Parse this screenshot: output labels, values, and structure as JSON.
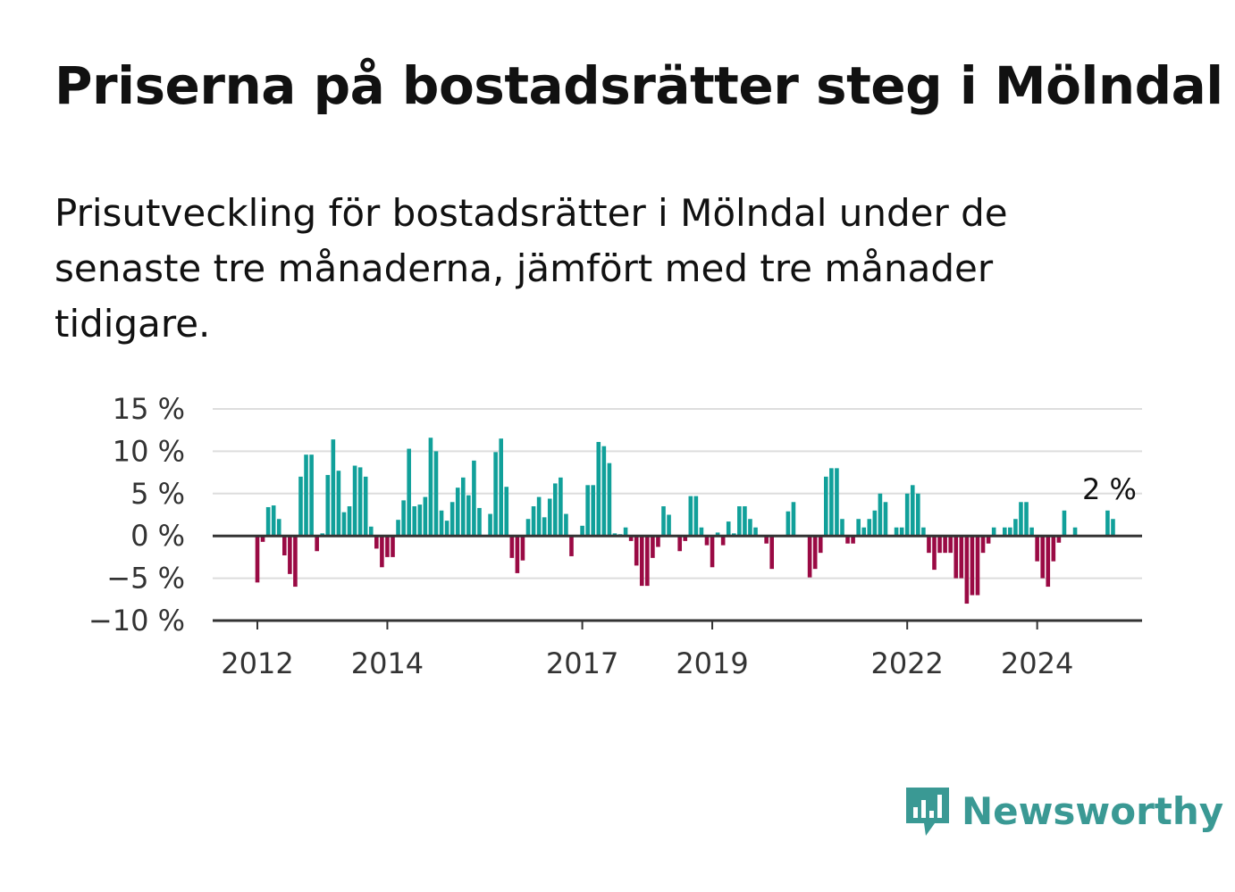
{
  "title": "Priserna på bostadsrätter steg i Mölndal",
  "subtitle": "Prisutveckling för bostadsrätter i Mölndal under de senaste tre månaderna, jämfört med tre månader tidigare.",
  "brand": {
    "name": "Newsworthy",
    "color": "#3a9994"
  },
  "colors": {
    "positive": "#11a09a",
    "negative": "#9a0a44",
    "grid": "#dddddd",
    "zero": "#333333"
  },
  "chart_data": {
    "type": "bar",
    "title": "Priserna på bostadsrätter steg i Mölndal",
    "ylim": [
      -10,
      15
    ],
    "yticks": [
      {
        "value": 15,
        "label": "15 %"
      },
      {
        "value": 10,
        "label": "10 %"
      },
      {
        "value": 5,
        "label": "5 %"
      },
      {
        "value": 0,
        "label": "0 %"
      },
      {
        "value": -5,
        "label": "−5 %"
      },
      {
        "value": -10,
        "label": "−10 %"
      }
    ],
    "xticks": [
      {
        "month": 0,
        "label": "2012"
      },
      {
        "month": 24,
        "label": "2014"
      },
      {
        "month": 60,
        "label": "2017"
      },
      {
        "month": 84,
        "label": "2019"
      },
      {
        "month": 120,
        "label": "2022"
      },
      {
        "month": 144,
        "label": "2024"
      }
    ],
    "start": "2012-01",
    "values": [
      -5.5,
      -0.7,
      3.4,
      3.6,
      2.0,
      -2.3,
      -4.5,
      -6.0,
      7.0,
      9.6,
      9.6,
      -1.8,
      0.3,
      7.2,
      11.4,
      7.7,
      2.8,
      3.5,
      8.3,
      8.1,
      7.0,
      1.1,
      -1.5,
      -3.7,
      -2.5,
      -2.5,
      1.9,
      4.2,
      10.3,
      3.5,
      3.7,
      4.6,
      11.6,
      10.0,
      3.0,
      1.8,
      4.0,
      5.7,
      6.9,
      4.8,
      8.9,
      3.3,
      0.0,
      2.6,
      9.9,
      11.5,
      5.8,
      -2.6,
      -4.4,
      -2.9,
      2.0,
      3.5,
      4.6,
      2.2,
      4.4,
      6.2,
      6.9,
      2.6,
      -2.4,
      0.0,
      1.2,
      6.0,
      6.0,
      11.1,
      10.6,
      8.6,
      0.3,
      0.2,
      1.0,
      -0.6,
      -3.5,
      -5.9,
      -5.9,
      -2.6,
      -1.3,
      3.5,
      2.5,
      0.0,
      -1.8,
      -0.6,
      4.7,
      4.7,
      1.0,
      -1.1,
      -3.7,
      0.4,
      -1.1,
      1.7,
      0.3,
      3.5,
      3.5,
      2.0,
      1.0,
      0.0,
      -0.9,
      -3.9,
      0.0,
      0.0,
      2.9,
      4.0,
      0.0,
      0.0,
      -4.9,
      -3.9,
      -2.0,
      7.0,
      8.0,
      8.0,
      2.0,
      -0.9,
      -0.9,
      2.0,
      1.0,
      2.0,
      3.0,
      5.0,
      4.0,
      0.0,
      1.0,
      1.0,
      5.0,
      6.0,
      5.0,
      1.0,
      -2.0,
      -4.0,
      -2.0,
      -2.0,
      -2.0,
      -5.0,
      -5.0,
      -8.0,
      -7.0,
      -7.0,
      -2.0,
      -0.9,
      1.0,
      0.0,
      1.0,
      1.0,
      2.0,
      4.0,
      4.0,
      1.0,
      -3.0,
      -5.0,
      -6.0,
      -3.0,
      -0.8,
      3.0,
      0.0,
      1.0,
      0.0,
      0.0,
      0.0,
      0.0,
      0.0,
      3.0,
      2.0
    ],
    "annotation": {
      "month": 157,
      "label": "2 %"
    }
  }
}
